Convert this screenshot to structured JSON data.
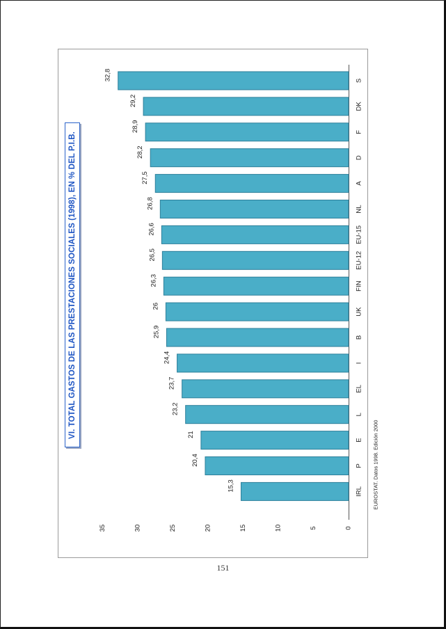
{
  "page": {
    "number": "151"
  },
  "source": "EUROSTAT. Datos 1998. Edición 2000",
  "colors": {
    "bar": "#4aaec8",
    "bar_edge": "#2d7f9a",
    "title": "#1f56c4",
    "axis": "#555555"
  },
  "chart_data": {
    "type": "bar",
    "orientation": "horizontal",
    "title": "VI. TOTAL GASTOS DE LAS PRESTACIONES SOCIALES (1998), EN % DEL P.I.B.",
    "categories": [
      "S",
      "DK",
      "F",
      "D",
      "A",
      "NL",
      "EU-15",
      "EU-12",
      "FIN",
      "UK",
      "B",
      "I",
      "EL",
      "L",
      "E",
      "P",
      "IRL"
    ],
    "values": [
      32.8,
      29.2,
      28.9,
      28.2,
      27.5,
      26.8,
      26.6,
      26.5,
      26.3,
      26,
      25.9,
      24.4,
      23.7,
      23.2,
      21,
      20.4,
      15.3
    ],
    "value_labels": [
      "32,8",
      "29,2",
      "28,9",
      "28,2",
      "27,5",
      "26,8",
      "26,6",
      "26,5",
      "26,3",
      "26",
      "25,9",
      "24,4",
      "23,7",
      "23,2",
      "21",
      "20,4",
      "15,3"
    ],
    "value_axis": {
      "ticks": [
        "0",
        "5",
        "10",
        "15",
        "20",
        "25",
        "30",
        "35"
      ],
      "range": [
        0,
        35
      ]
    },
    "xlabel": "",
    "ylabel": "",
    "grid": false,
    "legend": "none"
  }
}
